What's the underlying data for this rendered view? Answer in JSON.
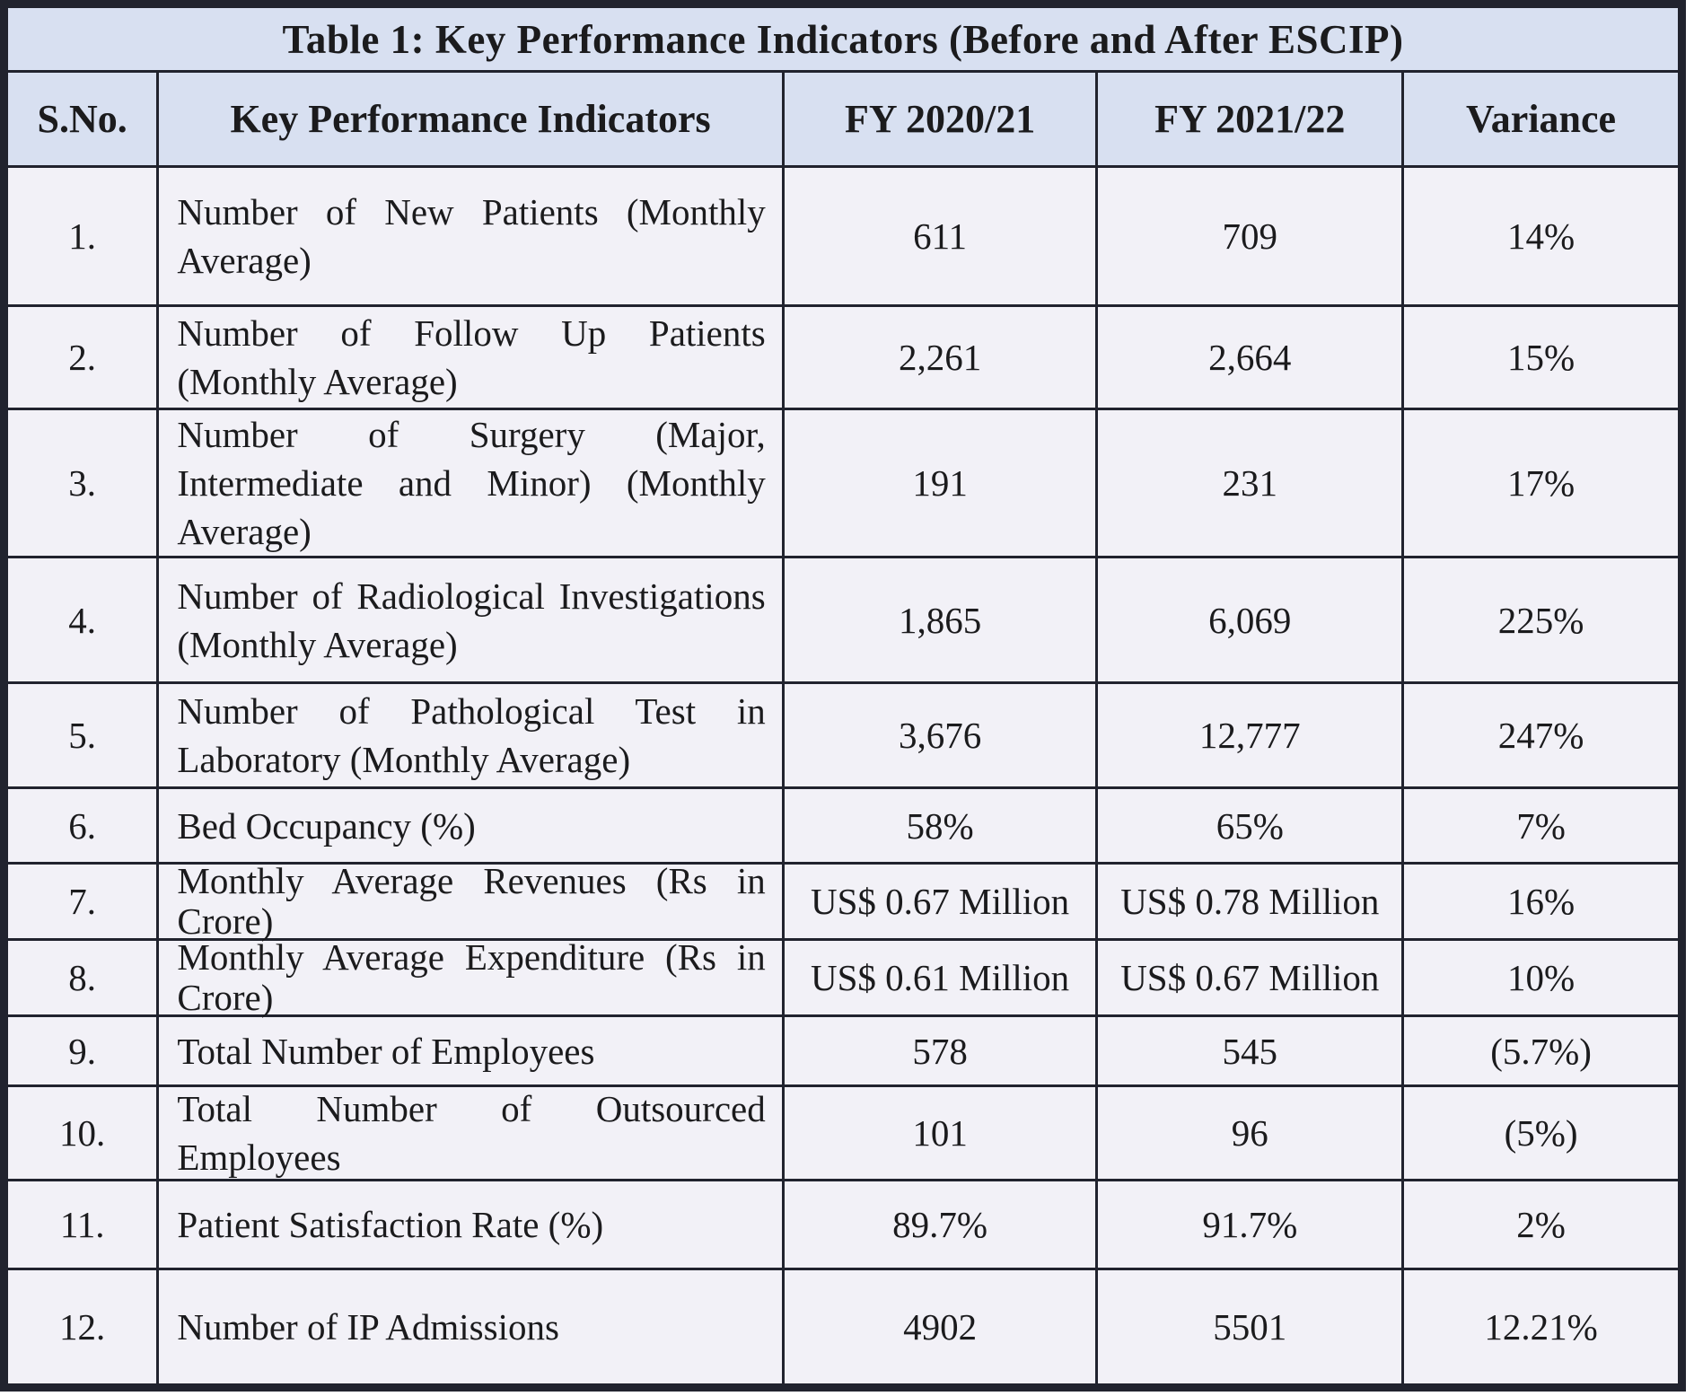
{
  "table": {
    "title": "Table 1: Key Performance Indicators (Before and After ESCIP)",
    "columns": [
      "S.No.",
      "Key Performance Indicators",
      "FY 2020/21",
      "FY 2021/22",
      "Variance"
    ],
    "rows": [
      {
        "sno": "1.",
        "kpi_lines": [
          "Number of New Patients (Monthly",
          "Average)"
        ],
        "fy_2020_21": "611",
        "fy_2021_22": "709",
        "variance": "14%"
      },
      {
        "sno": "2.",
        "kpi_lines": [
          "Number of Follow Up Patients",
          "(Monthly Average)"
        ],
        "fy_2020_21": "2,261",
        "fy_2021_22": "2,664",
        "variance": "15%"
      },
      {
        "sno": "3.",
        "kpi_lines": [
          "Number of Surgery (Major,",
          "Intermediate and Minor) (Monthly",
          "Average)"
        ],
        "fy_2020_21": "191",
        "fy_2021_22": "231",
        "variance": "17%"
      },
      {
        "sno": "4.",
        "kpi_lines": [
          "Number of Radiological Investigations",
          "(Monthly Average)"
        ],
        "fy_2020_21": "1,865",
        "fy_2021_22": "6,069",
        "variance": "225%"
      },
      {
        "sno": "5.",
        "kpi_lines": [
          "Number of Pathological Test in",
          "Laboratory (Monthly Average)"
        ],
        "fy_2020_21": "3,676",
        "fy_2021_22": "12,777",
        "variance": "247%"
      },
      {
        "sno": "6.",
        "kpi_lines": [
          "Bed Occupancy (%)"
        ],
        "fy_2020_21": "58%",
        "fy_2021_22": "65%",
        "variance": "7%"
      },
      {
        "sno": "7.",
        "kpi_lines": [
          "Monthly Average Revenues (Rs in",
          "Crore)"
        ],
        "fy_2020_21": "US$ 0.67 Million",
        "fy_2021_22": "US$ 0.78 Million",
        "variance": "16%"
      },
      {
        "sno": "8.",
        "kpi_lines": [
          "Monthly Average Expenditure (Rs in",
          "Crore)"
        ],
        "fy_2020_21": "US$ 0.61 Million",
        "fy_2021_22": "US$ 0.67 Million",
        "variance": "10%"
      },
      {
        "sno": "9.",
        "kpi_lines": [
          "Total Number of Employees"
        ],
        "fy_2020_21": "578",
        "fy_2021_22": "545",
        "variance": "(5.7%)"
      },
      {
        "sno": "10.",
        "kpi_lines": [
          "Total Number of Outsourced",
          "Employees"
        ],
        "fy_2020_21": "101",
        "fy_2021_22": "96",
        "variance": "(5%)"
      },
      {
        "sno": "11.",
        "kpi_lines": [
          "Patient Satisfaction Rate (%)"
        ],
        "fy_2020_21": "89.7%",
        "fy_2021_22": "91.7%",
        "variance": "2%"
      },
      {
        "sno": "12.",
        "kpi_lines": [
          "Number of IP Admissions"
        ],
        "fy_2020_21": "4902",
        "fy_2021_22": "5501",
        "variance": "12.21%"
      }
    ]
  },
  "colors": {
    "header_bg": "#d8e0f1",
    "body_bg": "#f2f1f7",
    "border": "#21232e",
    "text": "#1b1b1d"
  }
}
